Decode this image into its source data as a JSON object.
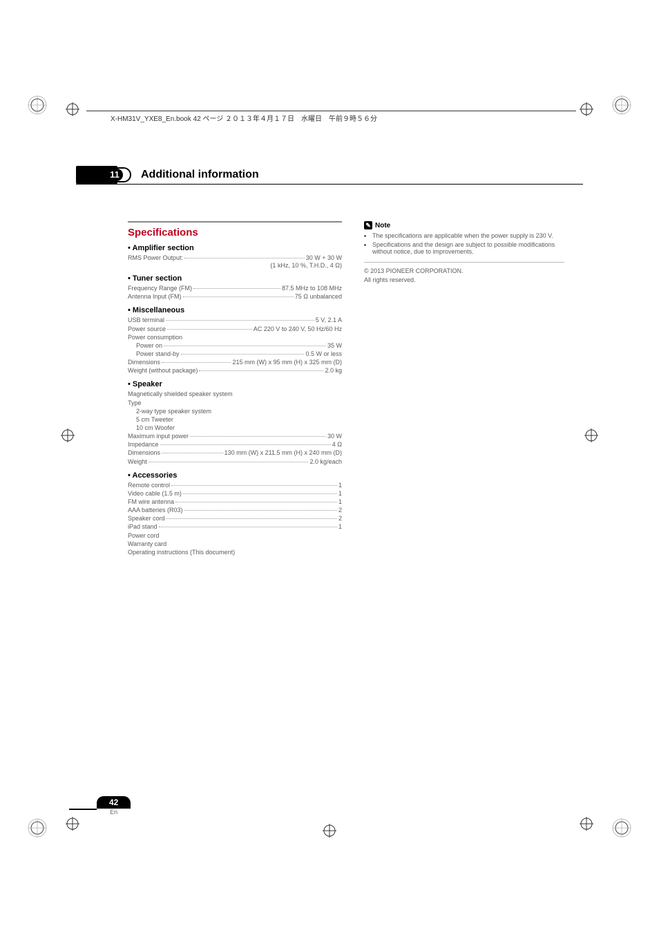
{
  "fileinfo": "X-HM31V_YXE8_En.book  42 ページ  ２０１３年４月１７日　水曜日　午前９時５６分",
  "chapter": {
    "number": "11",
    "title": "Additional information"
  },
  "specs_title": "Specifications",
  "amplifier_heading": "Amplifier section",
  "amplifier_rows": [
    {
      "label": "RMS Power Output:",
      "value": "30 W + 30 W"
    }
  ],
  "amplifier_note": "(1 kHz, 10 %, T.H.D., 4 Ω)",
  "tuner_heading": "Tuner section",
  "tuner_rows": [
    {
      "label": "Frequency Range (FM)",
      "value": "87.5 MHz to 108 MHz"
    },
    {
      "label": "Antenna Input (FM)",
      "value": "75 Ω unbalanced"
    }
  ],
  "misc_heading": "Miscellaneous",
  "misc_rows_top": [
    {
      "label": "USB terminal",
      "value": "5 V, 2.1 A"
    },
    {
      "label": "Power source",
      "value": "AC 220 V to 240 V, 50 Hz/60 Hz"
    }
  ],
  "misc_power_label": "Power consumption",
  "misc_power_rows": [
    {
      "label": "Power on",
      "value": "35 W"
    },
    {
      "label": "Power stand-by",
      "value": "0.5 W or less"
    }
  ],
  "misc_rows_bottom": [
    {
      "label": "Dimensions",
      "value": "215 mm (W) x 95 mm (H) x 325 mm (D)"
    },
    {
      "label": "Weight (without package)",
      "value": "2.0 kg"
    }
  ],
  "speaker_heading": "Speaker",
  "speaker_lines": [
    "Magnetically shielded speaker system",
    "Type"
  ],
  "speaker_sub": [
    "2-way type speaker system",
    "5 cm Tweeter",
    "10 cm Woofer"
  ],
  "speaker_rows": [
    {
      "label": "Maximum input power",
      "value": "30 W"
    },
    {
      "label": "Impedance",
      "value": "4 Ω"
    },
    {
      "label": "Dimensions",
      "value": "130 mm (W) x 211.5 mm (H) x 240 mm (D)"
    },
    {
      "label": "Weight",
      "value": "2.0 kg/each"
    }
  ],
  "accessories_heading": "Accessories",
  "accessories_rows": [
    {
      "label": "Remote control",
      "value": "1"
    },
    {
      "label": "Video cable (1.5 m)",
      "value": "1"
    },
    {
      "label": "FM wire antenna",
      "value": "1"
    },
    {
      "label": "AAA batteries (R03)",
      "value": "2"
    },
    {
      "label": "Speaker cord",
      "value": "2"
    },
    {
      "label": "iPad stand",
      "value": "1"
    }
  ],
  "accessories_tail": [
    "Power cord",
    "Warranty card",
    "Operating instructions (This document)"
  ],
  "note_label": "Note",
  "note_items": [
    "The specifications are applicable when the power supply is 230 V.",
    "Specifications and the design are subject to possible modifications without notice, due to improvements."
  ],
  "copyright_lines": [
    "© 2013 PIONEER CORPORATION.",
    "All rights reserved."
  ],
  "page_number": "42",
  "page_lang": "En",
  "colors": {
    "accent_red": "#c00020",
    "body_text": "#5a5a5a",
    "black": "#000000"
  }
}
